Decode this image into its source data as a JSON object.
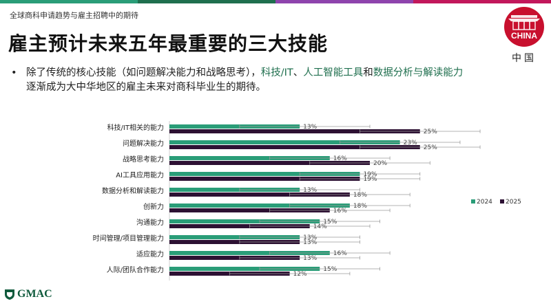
{
  "colors": {
    "topbar": [
      "#2a9d78",
      "#1f6f4e",
      "#8e44ad",
      "#c2185b"
    ],
    "series_2024": "#2a9d78",
    "series_2025": "#2d1133",
    "highlight": "#1f6f4e",
    "badge": "#c8102e"
  },
  "header": {
    "breadcrumb": "全球商科申请趋势与雇主招聘中的期待",
    "title": "雇主预计未来五年最重要的三大技能"
  },
  "badge": {
    "icon": "china-gate-icon",
    "word": "CHINA",
    "label": "中国"
  },
  "bullet": {
    "p1": "除了传统的核心技能（如问题解决能力和战略思考），",
    "h1": "科技/IT",
    "p2": "、",
    "h2": "人工智能工具",
    "p3": "和",
    "h3": "数据分析与解读能力",
    "p4": "逐渐成为大中华地区的雇主未来对商科毕业生的期待。"
  },
  "chart_data": {
    "type": "bar",
    "orientation": "horizontal",
    "categories": [
      "科技/IT相关的能力",
      "问题解决能力",
      "战略思考能力",
      "AI工具应用能力",
      "数据分析和解读能力",
      "创新力",
      "沟通能力",
      "时间管理/项目管理能力",
      "适应能力",
      "人际/团队合作能力"
    ],
    "series": [
      {
        "name": "2024",
        "values": [
          13,
          23,
          16,
          19,
          13,
          18,
          15,
          13,
          16,
          15
        ],
        "error_low": [
          7,
          17,
          10,
          13,
          7,
          12,
          9,
          7,
          10,
          9
        ],
        "error_high": [
          20,
          29,
          22,
          25,
          19,
          24,
          21,
          19,
          22,
          21
        ]
      },
      {
        "name": "2025",
        "values": [
          25,
          25,
          20,
          19,
          18,
          16,
          14,
          13,
          13,
          12
        ],
        "error_low": [
          19,
          19,
          14,
          13,
          12,
          10,
          8,
          7,
          7,
          6
        ],
        "error_high": [
          31,
          31,
          26,
          25,
          24,
          22,
          20,
          19,
          19,
          18
        ]
      }
    ],
    "data_labels": {
      "2024": [
        "13%",
        "23%",
        "16%",
        "19%",
        "13%",
        "18%",
        "15%",
        "13%",
        "16%",
        "15%"
      ],
      "2025": [
        "25%",
        "25%",
        "20%",
        "19%",
        "18%",
        "16%",
        "14%",
        "13%",
        "13%",
        "12%"
      ]
    },
    "xlim": [
      0,
      40
    ],
    "legend": "right",
    "grid": false
  },
  "footer": {
    "logo_text": "GMAC",
    "logo_icon": "gmac-shield-icon"
  }
}
